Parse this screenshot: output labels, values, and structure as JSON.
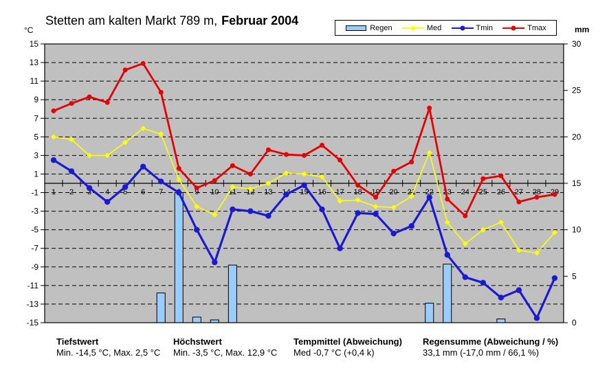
{
  "title": {
    "prefix": "Stetten am kalten Markt 789 m,",
    "period": "Februar 2004"
  },
  "axes": {
    "left_unit": "°C",
    "right_unit": "mm",
    "left_min": -15,
    "left_max": 15,
    "left_ticks": [
      15,
      13,
      11,
      9,
      7,
      5,
      3,
      1,
      -1,
      -3,
      -5,
      -7,
      -9,
      -11,
      -13,
      -15
    ],
    "right_min": 0,
    "right_max": 30,
    "right_ticks": [
      30,
      25,
      20,
      15,
      10,
      5,
      0
    ],
    "x_axis_crosses_at": 0
  },
  "colors": {
    "plot_bg": "#C0C0C0",
    "grid": "#000000",
    "axis": "#000000",
    "bar_stroke": "#000000",
    "text": "#000000"
  },
  "chart_data": {
    "type": "bar+line",
    "title": "Stetten am kalten Markt 789 m, Februar 2004",
    "x": [
      1,
      2,
      3,
      4,
      5,
      6,
      7,
      8,
      9,
      10,
      11,
      12,
      13,
      14,
      15,
      16,
      17,
      18,
      19,
      20,
      21,
      22,
      23,
      24,
      25,
      26,
      27,
      28,
      29
    ],
    "ylim_left": [
      -15,
      15
    ],
    "ylim_right": [
      0,
      30
    ],
    "grid": "dashed horizontal lines at odd °C values",
    "legend_position": "top-right",
    "series": [
      {
        "name": "Regen",
        "type": "bar",
        "axis": "right",
        "unit": "mm",
        "color": "#99CCFF",
        "values": [
          0,
          0,
          0,
          0,
          0,
          0,
          3.2,
          14.0,
          0.6,
          0.3,
          6.2,
          0,
          0,
          0,
          0,
          0,
          0,
          0,
          0,
          0,
          0,
          2.1,
          6.3,
          0,
          0,
          0.4,
          0,
          0,
          0
        ]
      },
      {
        "name": "Med",
        "type": "line",
        "axis": "left",
        "unit": "°C",
        "color": "#FFFF00",
        "marker": "diamond",
        "values": [
          5.0,
          4.7,
          3.0,
          3.0,
          4.4,
          5.9,
          5.3,
          0.4,
          -2.5,
          -3.4,
          -0.4,
          -0.6,
          0.0,
          1.1,
          1.0,
          0.7,
          -1.9,
          -1.8,
          -2.5,
          -2.6,
          -1.4,
          3.3,
          -4.2,
          -6.5,
          -5.0,
          -4.2,
          -7.2,
          -7.5,
          -5.3
        ]
      },
      {
        "name": "Tmin",
        "type": "line",
        "axis": "left",
        "unit": "°C",
        "color": "#1A1AD4",
        "marker": "circle",
        "values": [
          2.5,
          1.3,
          -0.5,
          -2.0,
          -0.4,
          1.8,
          0.2,
          -1.0,
          -5.0,
          -8.5,
          -2.8,
          -3.0,
          -3.5,
          -1.2,
          -0.2,
          -2.8,
          -7.0,
          -3.2,
          -3.3,
          -5.4,
          -4.6,
          -1.5,
          -7.7,
          -10.1,
          -10.7,
          -12.3,
          -11.5,
          -14.5,
          -10.2
        ]
      },
      {
        "name": "Tmax",
        "type": "line",
        "axis": "left",
        "unit": "°C",
        "color": "#E80000",
        "marker": "circle",
        "values": [
          7.8,
          8.6,
          9.3,
          8.7,
          12.2,
          12.9,
          9.8,
          1.6,
          -0.5,
          0.3,
          1.9,
          1.0,
          3.6,
          3.1,
          3.0,
          4.1,
          2.5,
          -0.2,
          -1.5,
          1.3,
          2.3,
          8.1,
          -1.7,
          -3.5,
          0.5,
          0.8,
          -2.0,
          -1.5,
          -1.2
        ]
      }
    ]
  },
  "footer": {
    "columns": [
      {
        "title": "Tiefstwert",
        "value": "Min. -14,5 °C, Max. 2,5 °C"
      },
      {
        "title": "Höchstwert",
        "value": "Min. -3,5 °C, Max. 12,9 °C"
      },
      {
        "title": "Tempmittel (Abweichung)",
        "value": "Med -0,7 °C (+0,4 k)"
      },
      {
        "title": "Regensumme (Abweichung / %)",
        "value": "33,1 mm (-17,0 mm / 66,1 %)"
      }
    ]
  }
}
